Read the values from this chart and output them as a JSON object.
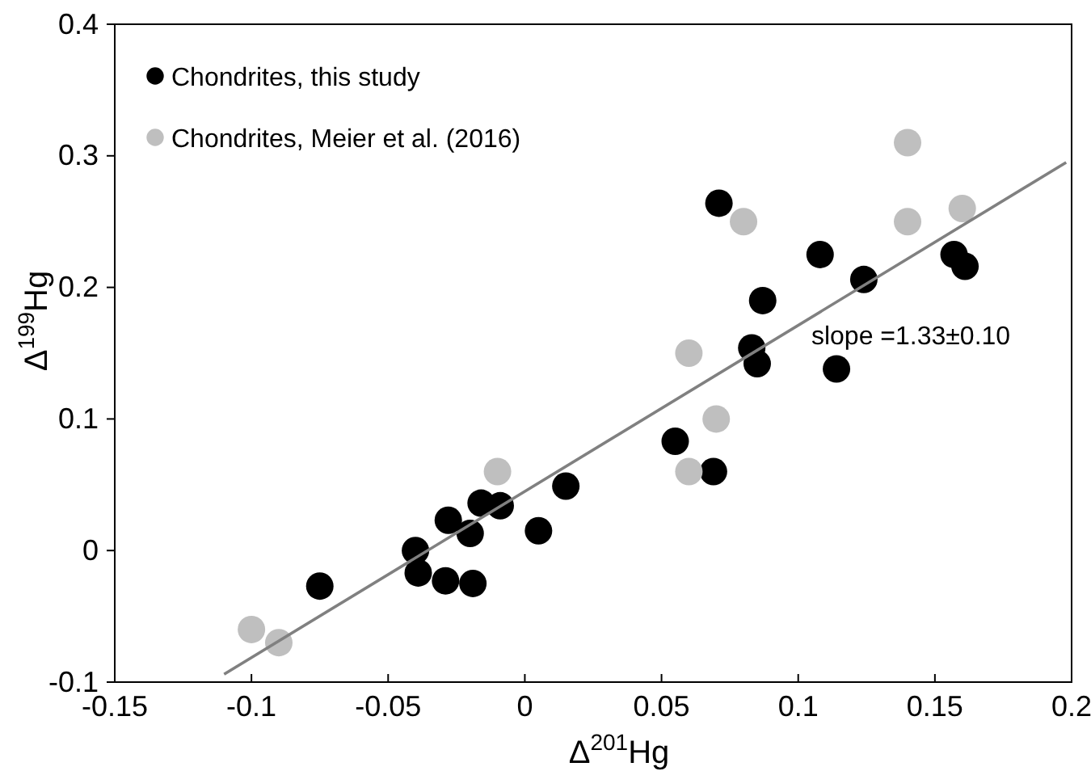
{
  "chart_data": {
    "type": "scatter",
    "xlabel": "Δ$^{201}$Hg",
    "ylabel": "Δ$^{199}$Hg",
    "xlim": [
      -0.15,
      0.2
    ],
    "xticks": [
      -0.15,
      -0.1,
      -0.05,
      0,
      0.05,
      0.1,
      0.15,
      0.2
    ],
    "ylim": [
      -0.1,
      0.4
    ],
    "yticks": [
      -0.1,
      0,
      0.1,
      0.2,
      0.3,
      0.4
    ],
    "grid": false,
    "legend": "top left",
    "marker": "circle",
    "annotations": [
      "slope =1.33±0.10"
    ],
    "series": [
      {
        "name": "Chondrites, this study",
        "color": "#000000",
        "x": [
          -0.075,
          -0.04,
          -0.039,
          -0.028,
          -0.029,
          -0.02,
          -0.019,
          -0.016,
          -0.009,
          0.005,
          0.015,
          0.055,
          0.069,
          0.071,
          0.083,
          0.085,
          0.087,
          0.108,
          0.114,
          0.124,
          0.157,
          0.161
        ],
        "values": [
          -0.027,
          0,
          -0.017,
          0.023,
          -0.023,
          0.013,
          -0.025,
          0.036,
          0.034,
          0.015,
          0.049,
          0.083,
          0.06,
          0.264,
          0.154,
          0.142,
          0.19,
          0.225,
          0.138,
          0.206,
          0.225,
          0.216
        ]
      },
      {
        "name": "Chondrites, Meier et al. (2016)",
        "color": "#bfbfbf",
        "x": [
          -0.1,
          -0.09,
          -0.01,
          0.06,
          0.06,
          0.07,
          0.08,
          0.14,
          0.14,
          0.16
        ],
        "values": [
          -0.06,
          -0.07,
          0.06,
          0.15,
          0.06,
          0.1,
          0.25,
          0.31,
          0.25,
          0.26
        ]
      },
      {
        "type": "line",
        "color": "#808080",
        "marker": "none",
        "line_style": "solid",
        "x": [
          -0.11,
          0.198
        ],
        "values": [
          -0.094,
          0.295
        ]
      }
    ]
  }
}
